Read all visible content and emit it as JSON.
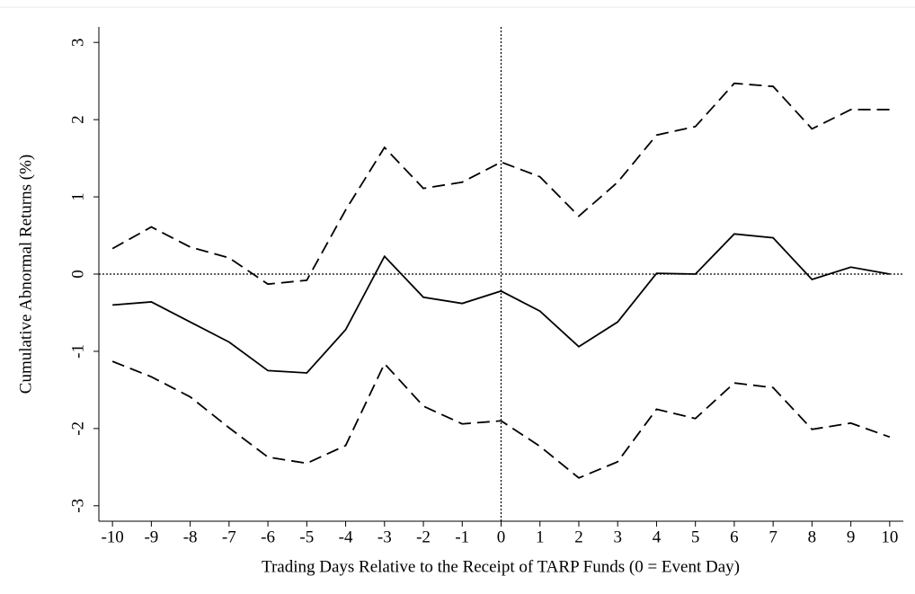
{
  "chart_data": {
    "type": "line",
    "x_label": "Trading Days Relative to the Receipt of TARP Funds (0 = Event Day)",
    "y_label": "Cumulative Abnormal Returns (%)",
    "x": [
      -10,
      -9,
      -8,
      -7,
      -6,
      -5,
      -4,
      -3,
      -2,
      -1,
      0,
      1,
      2,
      3,
      4,
      5,
      6,
      7,
      8,
      9,
      10
    ],
    "series": [
      {
        "color": "#000000",
        "dash": false,
        "values": [
          -0.4,
          -0.36,
          -0.62,
          -0.88,
          -1.25,
          -1.28,
          -0.72,
          0.23,
          -0.3,
          -0.38,
          -0.22,
          -0.48,
          -0.94,
          -0.62,
          0.01,
          0.0,
          0.52,
          0.47,
          -0.07,
          0.09,
          0.0
        ]
      },
      {
        "color": "#000000",
        "dash": true,
        "values": [
          0.33,
          0.61,
          0.35,
          0.21,
          -0.13,
          -0.08,
          0.83,
          1.64,
          1.11,
          1.19,
          1.45,
          1.26,
          0.75,
          1.19,
          1.8,
          1.91,
          2.47,
          2.43,
          1.88,
          2.13,
          2.13
        ]
      },
      {
        "color": "#000000",
        "dash": true,
        "values": [
          -1.13,
          -1.33,
          -1.59,
          -1.99,
          -2.37,
          -2.45,
          -2.22,
          -1.16,
          -1.71,
          -1.94,
          -1.9,
          -2.23,
          -2.64,
          -2.43,
          -1.75,
          -1.87,
          -1.41,
          -1.47,
          -2.01,
          -1.93,
          -2.11
        ]
      }
    ],
    "xlim": [
      -10.35,
      10.35
    ],
    "ylim": [
      -3.2,
      3.2
    ],
    "xticks": [
      -10,
      -9,
      -8,
      -7,
      -6,
      -5,
      -4,
      -3,
      -2,
      -1,
      0,
      1,
      2,
      3,
      4,
      5,
      6,
      7,
      8,
      9,
      10
    ],
    "yticks": [
      -3,
      -2,
      -1,
      0,
      1,
      2,
      3
    ],
    "hline": 0,
    "vline": 0
  }
}
